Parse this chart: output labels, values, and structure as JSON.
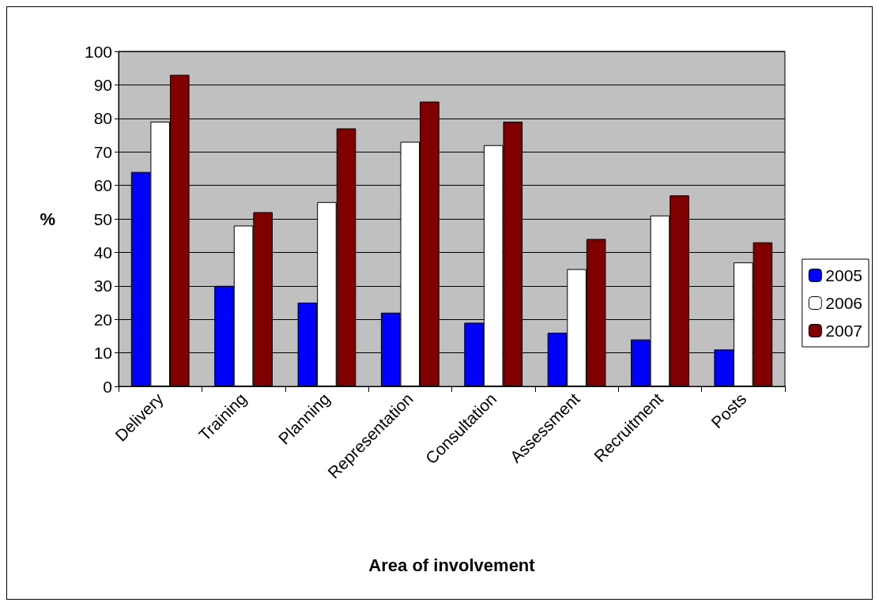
{
  "chart_data": {
    "type": "bar",
    "xlabel": "Area of involvement",
    "ylabel": "%",
    "categories": [
      "Delivery",
      "Training",
      "Planning",
      "Representation",
      "Consultation",
      "Assessment",
      "Recruitment",
      "Posts"
    ],
    "series": [
      {
        "name": "2005",
        "color": "#0000ff",
        "values": [
          64,
          30,
          25,
          22,
          19,
          16,
          14,
          11
        ]
      },
      {
        "name": "2006",
        "color": "#ffffff",
        "values": [
          79,
          48,
          55,
          73,
          72,
          35,
          51,
          37
        ]
      },
      {
        "name": "2007",
        "color": "#800000",
        "values": [
          93,
          52,
          77,
          85,
          79,
          44,
          57,
          43
        ]
      }
    ],
    "ylim": [
      0,
      100
    ],
    "yticks": [
      0,
      10,
      20,
      30,
      40,
      50,
      60,
      70,
      80,
      90,
      100
    ],
    "grid": "y",
    "legend": "right"
  }
}
